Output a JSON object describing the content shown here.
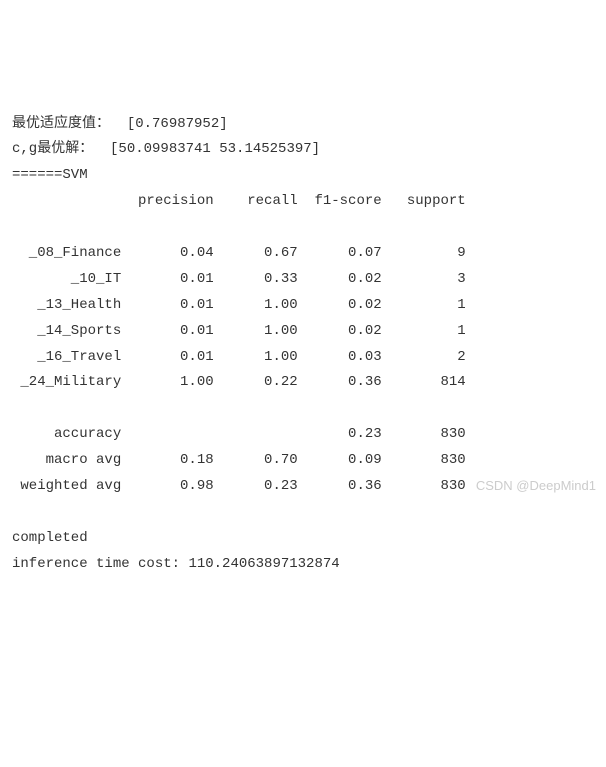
{
  "line1_label": "最优适应度值：  ",
  "line1_value": "[0.76987952]",
  "line2_label": "c,g最优解：  ",
  "line2_value": "[50.09983741 53.14525397]",
  "line3": "======SVM",
  "header": "               precision    recall  f1-score   support",
  "blank": "",
  "rows": [
    "  _08_Finance       0.04      0.67      0.07         9",
    "       _10_IT       0.01      0.33      0.02         3",
    "   _13_Health       0.01      1.00      0.02         1",
    "   _14_Sports       0.01      1.00      0.02         1",
    "   _16_Travel       0.01      1.00      0.03         2",
    " _24_Military       1.00      0.22      0.36       814"
  ],
  "summary": [
    "     accuracy                           0.23       830",
    "    macro avg       0.18      0.70      0.09       830",
    " weighted avg       0.98      0.23      0.36       830"
  ],
  "completed": "completed",
  "timecost_label": "inference time cost: ",
  "timecost_value": "110.24063897132874",
  "watermark": "CSDN @DeepMind1"
}
